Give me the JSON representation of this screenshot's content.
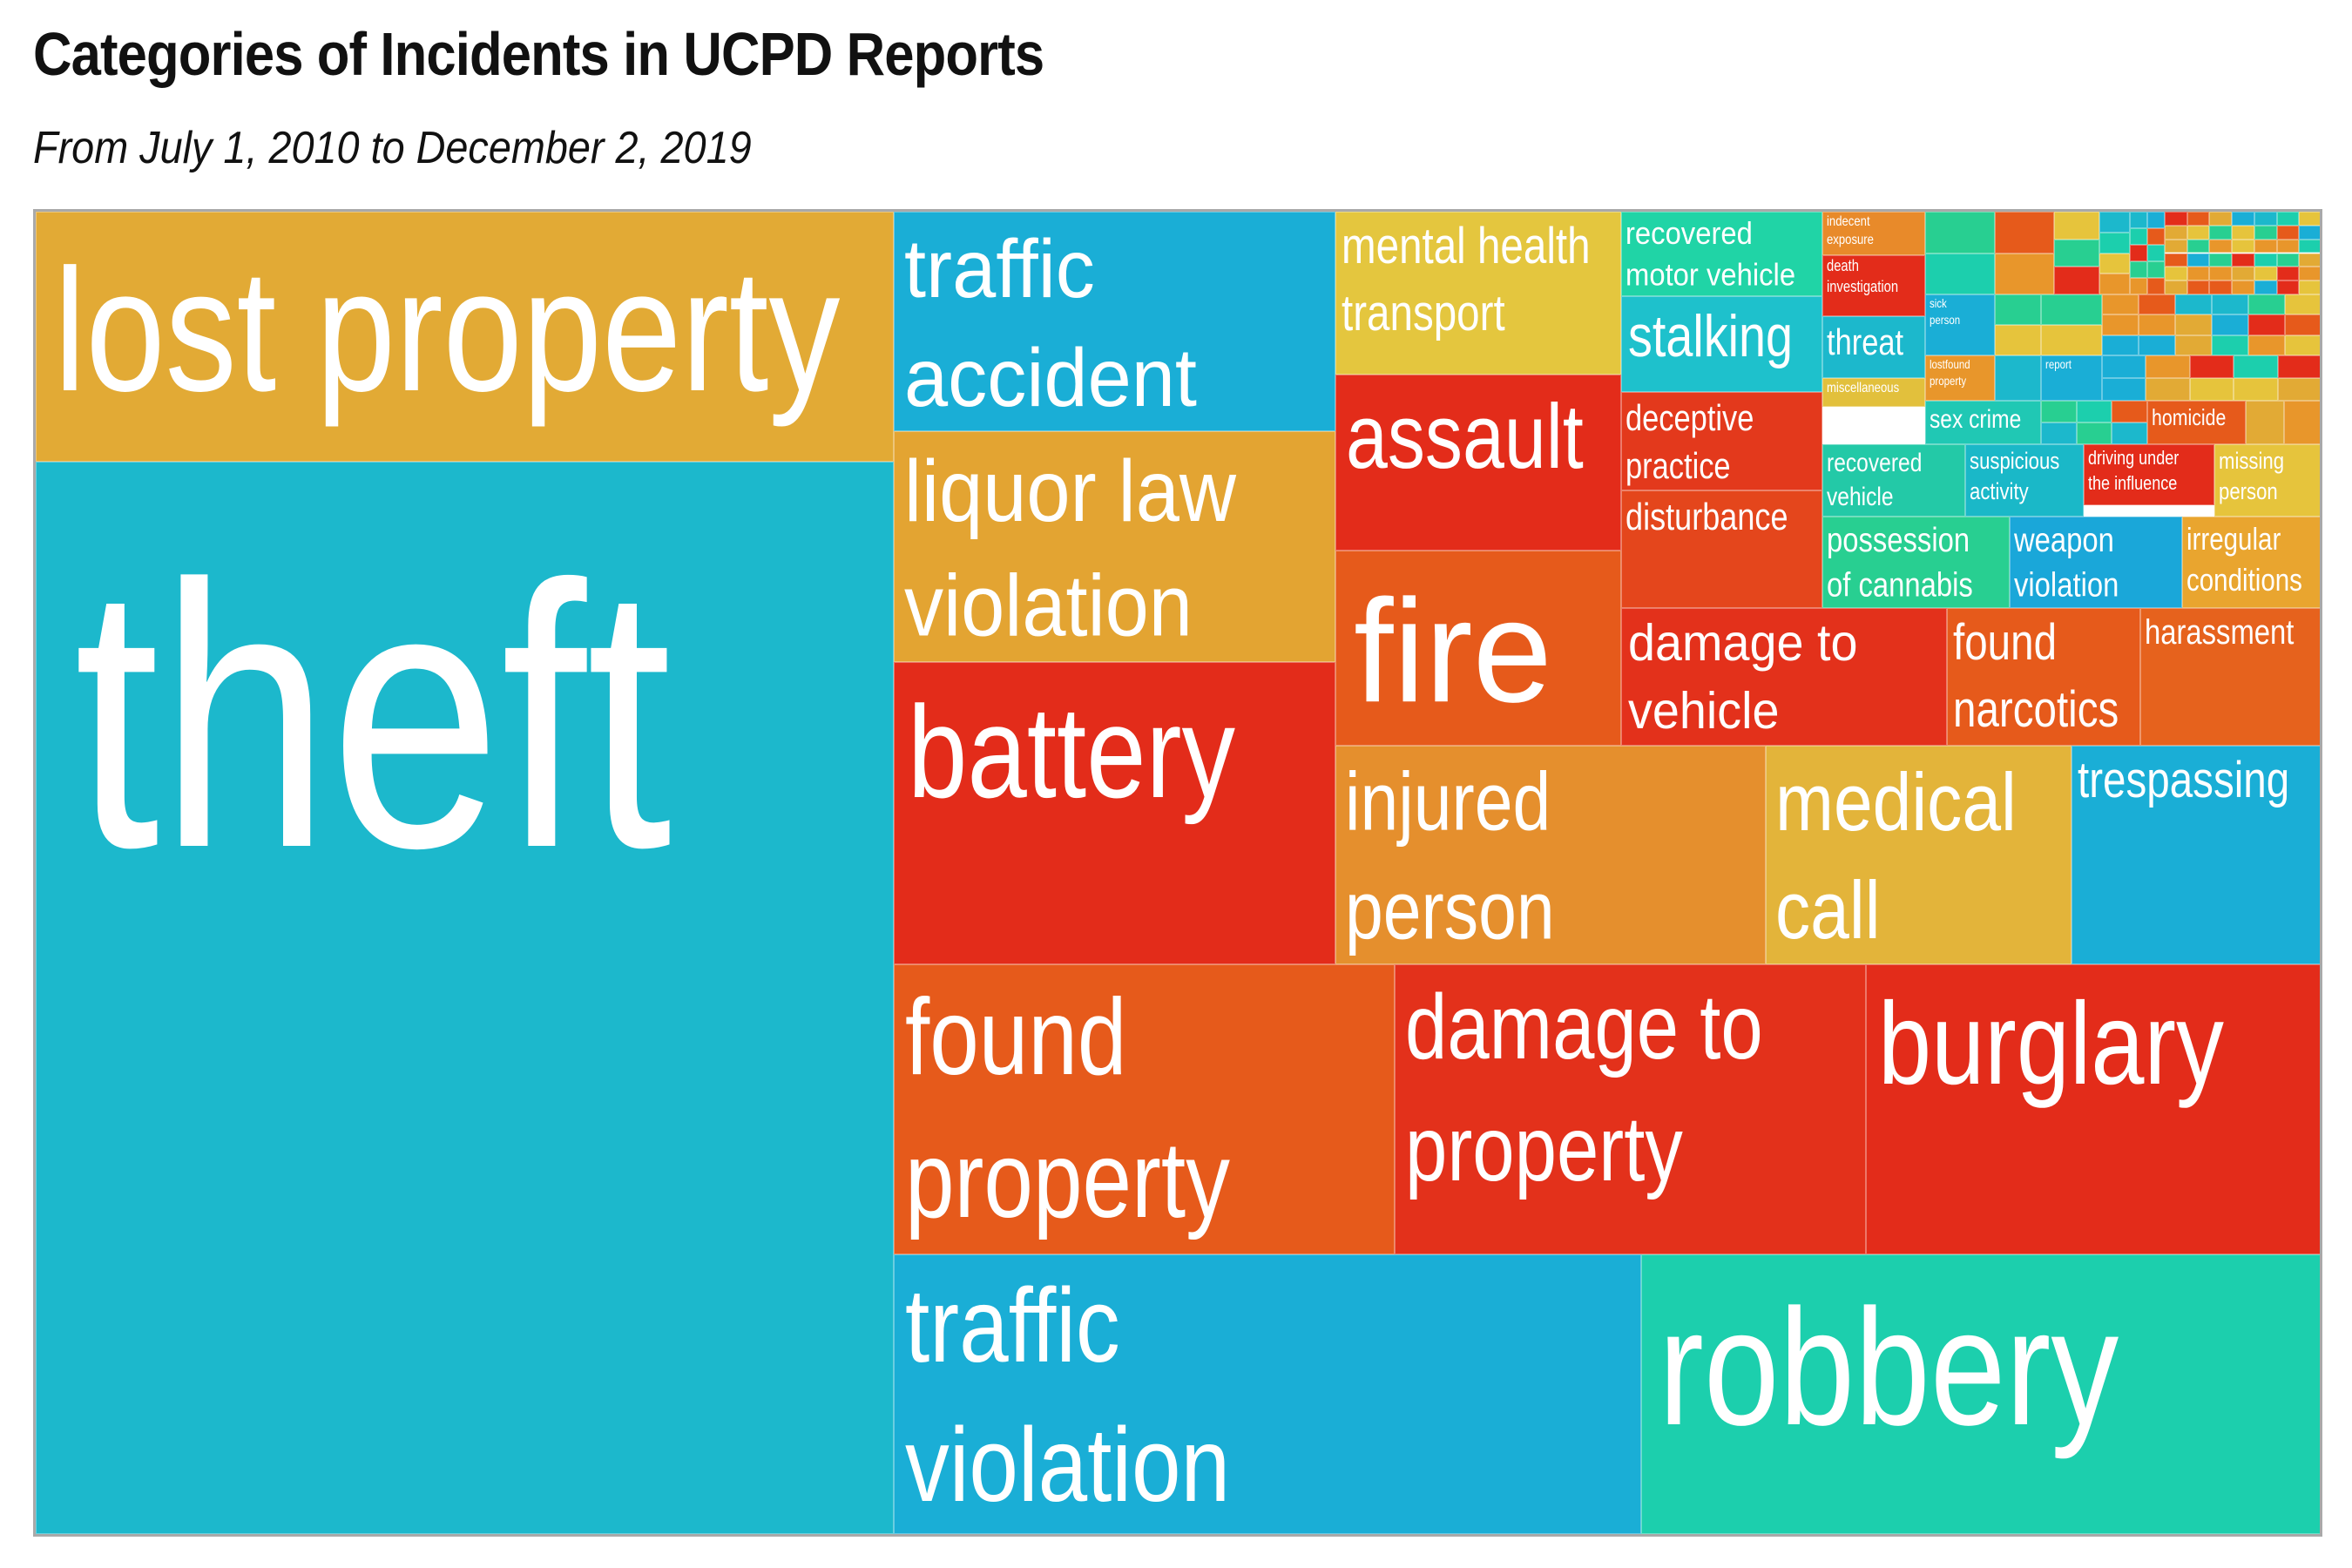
{
  "title": "Categories of Incidents in UCPD Reports",
  "subtitle": "From July 1, 2010 to December 2, 2019",
  "chart_data": {
    "type": "treemap",
    "title": "Categories of Incidents in UCPD Reports",
    "subtitle": "From July 1, 2010 to December 2, 2019",
    "value_unit": "share of treemap area (% of all reports, estimated)",
    "categories": [
      {
        "name": "lost property",
        "color": "#e2aa35",
        "value": 5.28
      },
      {
        "name": "theft",
        "color": "#1cb8cc",
        "value": 31.4
      },
      {
        "name": "traffic accident",
        "color": "#1aaed6",
        "value": 2.63
      },
      {
        "name": "liquor law violation",
        "color": "#e3a432",
        "value": 2.83
      },
      {
        "name": "battery",
        "color": "#e32c1a",
        "value": 3.68
      },
      {
        "name": "mental health transport",
        "color": "#e4c63e",
        "value": 1.23
      },
      {
        "name": "assault",
        "color": "#e32c1a",
        "value": 1.71
      },
      {
        "name": "fire",
        "color": "#e65a1b",
        "value": 2.5
      },
      {
        "name": "recovered motor vehicle",
        "color": "#20d4a6",
        "value": 0.7
      },
      {
        "name": "stalking",
        "color": "#1ec1cc",
        "value": 0.77
      },
      {
        "name": "deceptive practice",
        "color": "#e3391c",
        "value": 0.8
      },
      {
        "name": "disturbance",
        "color": "#e4461c",
        "value": 0.9
      },
      {
        "name": "indecent exposure",
        "color": "#e88a2a",
        "value": 0.13
      },
      {
        "name": "death investigation",
        "color": "#e32c1a",
        "value": 0.17
      },
      {
        "name": "threat",
        "color": "#1cb8cc",
        "value": 0.23
      },
      {
        "name": "miscellaneous",
        "color": "#e2c03c",
        "value": 0.14
      },
      {
        "name": "sick person",
        "color": "#1aaed6",
        "value": 0.15
      },
      {
        "name": "lostfound property",
        "color": "#e8962b",
        "value": 0.14
      },
      {
        "name": "report",
        "color": "#1aaed6",
        "value": 0.08
      },
      {
        "name": "sex crime",
        "color": "#20c8b4",
        "value": 0.16
      },
      {
        "name": "homicide",
        "color": "#e65a1b",
        "value": 0.16
      },
      {
        "name": "recovered vehicle",
        "color": "#23c9a7",
        "value": 0.28
      },
      {
        "name": "suspicious activity",
        "color": "#1ab8c8",
        "value": 0.25
      },
      {
        "name": "driving under the influence",
        "color": "#e32c1a",
        "value": 0.2
      },
      {
        "name": "missing person",
        "color": "#e6c43c",
        "value": 0.14
      },
      {
        "name": "possession of cannabis",
        "color": "#28cf91",
        "value": 0.33
      },
      {
        "name": "weapon violation",
        "color": "#1aa7d9",
        "value": 0.33
      },
      {
        "name": "irregular conditions",
        "color": "#e9a52f",
        "value": 0.28
      },
      {
        "name": "damage to vehicle",
        "color": "#e3311b",
        "value": 1.03
      },
      {
        "name": "found narcotics",
        "color": "#e65a1b",
        "value": 0.64
      },
      {
        "name": "harassment",
        "color": "#e6621d",
        "value": 0.59
      },
      {
        "name": "injured person",
        "color": "#e58f2d",
        "value": 2.05
      },
      {
        "name": "medical call",
        "color": "#e3b43a",
        "value": 1.46
      },
      {
        "name": "trespassing",
        "color": "#1aaed6",
        "value": 1.3
      },
      {
        "name": "found property",
        "color": "#e65a1b",
        "value": 2.67
      },
      {
        "name": "damage to property",
        "color": "#e3311b",
        "value": 2.5
      },
      {
        "name": "burglary",
        "color": "#e32c1a",
        "value": 2.45
      },
      {
        "name": "traffic violation",
        "color": "#1aaed6",
        "value": 4.09
      },
      {
        "name": "robbery",
        "color": "#1ccfad",
        "value": 3.73
      }
    ]
  },
  "colors": {
    "red": "#e32c1a",
    "orange_red": "#e65a1b",
    "orange": "#e8962b",
    "amber": "#e2aa35",
    "yellow": "#e6c43c",
    "teal": "#1cb8cc",
    "blue": "#1aaed6",
    "turquoise": "#1ccfad",
    "green": "#28cf91",
    "border": "#a9a9a9"
  }
}
